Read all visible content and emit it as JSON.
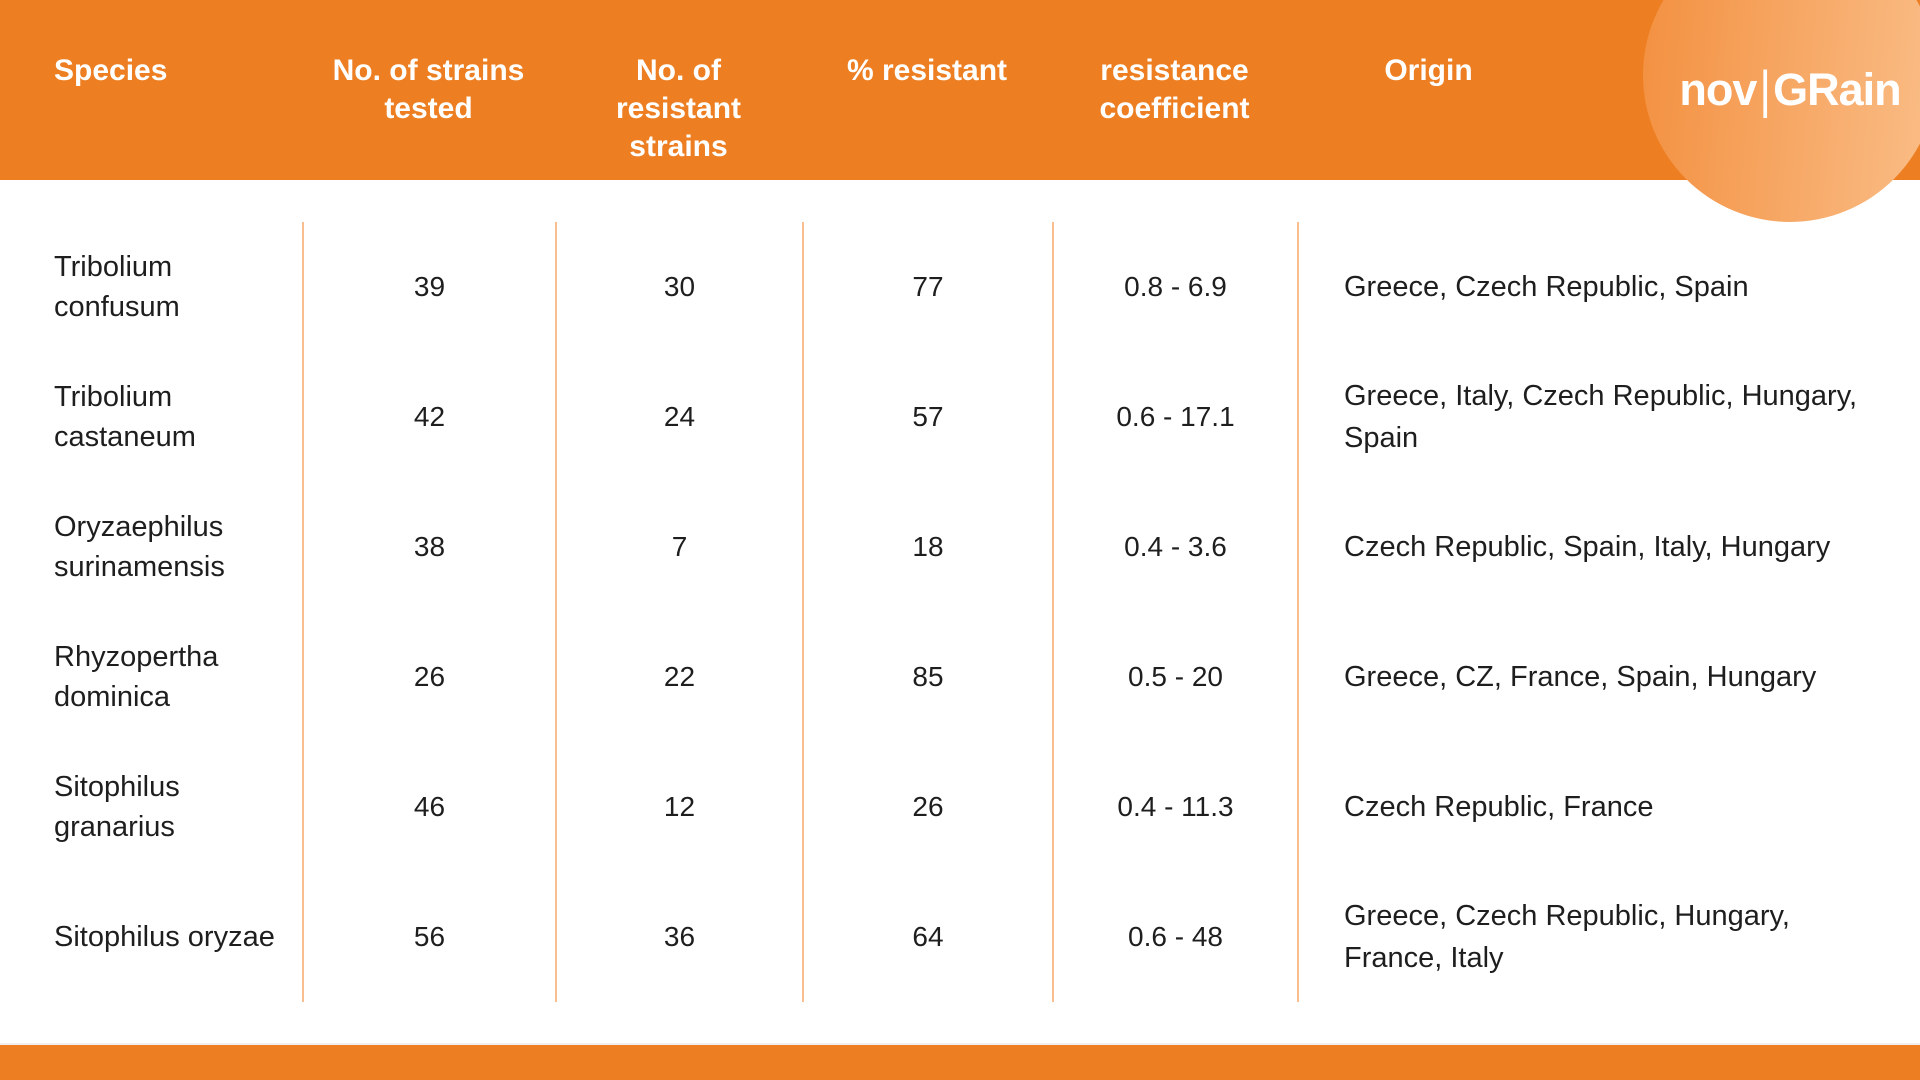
{
  "brand": {
    "name": "novIGRain",
    "logo_text": "nov|GRain",
    "parts": {
      "nov": "nov",
      "separator": "|",
      "grain": "GRain"
    }
  },
  "colors": {
    "primary_orange": "#ED7F22",
    "divider_orange": "#F9BE8F",
    "circle_gradient_start": "#F39040",
    "circle_gradient_end": "#FABE88",
    "header_text": "#FFFFFF",
    "body_text": "#1E1E1E",
    "background": "#FFFFFF"
  },
  "chart_data": {
    "type": "table",
    "columns": [
      {
        "key": "species",
        "label": "Species"
      },
      {
        "key": "strains_tested",
        "label": "No. of strains tested"
      },
      {
        "key": "resistant_strains",
        "label": "No. of resistant strains"
      },
      {
        "key": "pct_resistant",
        "label": "% resistant"
      },
      {
        "key": "resistance_coefficient",
        "label": "resistance coefficient"
      },
      {
        "key": "origin",
        "label": "Origin"
      }
    ],
    "rows": [
      {
        "species": "Tribolium confusum",
        "strains_tested": 39,
        "resistant_strains": 30,
        "pct_resistant": 77,
        "resistance_coefficient": "0.8 - 6.9",
        "origin": "Greece, Czech Republic, Spain"
      },
      {
        "species": "Tribolium castaneum",
        "strains_tested": 42,
        "resistant_strains": 24,
        "pct_resistant": 57,
        "resistance_coefficient": "0.6 - 17.1",
        "origin": "Greece, Italy, Czech Republic, Hungary, Spain"
      },
      {
        "species": "Oryzaephilus surinamensis",
        "strains_tested": 38,
        "resistant_strains": 7,
        "pct_resistant": 18,
        "resistance_coefficient": "0.4 - 3.6",
        "origin": "Czech Republic, Spain, Italy, Hungary"
      },
      {
        "species": "Rhyzopertha dominica",
        "strains_tested": 26,
        "resistant_strains": 22,
        "pct_resistant": 85,
        "resistance_coefficient": "0.5 - 20",
        "origin": "Greece, CZ, France, Spain, Hungary"
      },
      {
        "species": "Sitophilus granarius",
        "strains_tested": 46,
        "resistant_strains": 12,
        "pct_resistant": 26,
        "resistance_coefficient": "0.4 - 11.3",
        "origin": "Czech Republic, France"
      },
      {
        "species": "Sitophilus oryzae",
        "strains_tested": 56,
        "resistant_strains": 36,
        "pct_resistant": 64,
        "resistance_coefficient": "0.6 - 48",
        "origin": "Greece, Czech Republic, Hungary, France, Italy"
      }
    ]
  }
}
